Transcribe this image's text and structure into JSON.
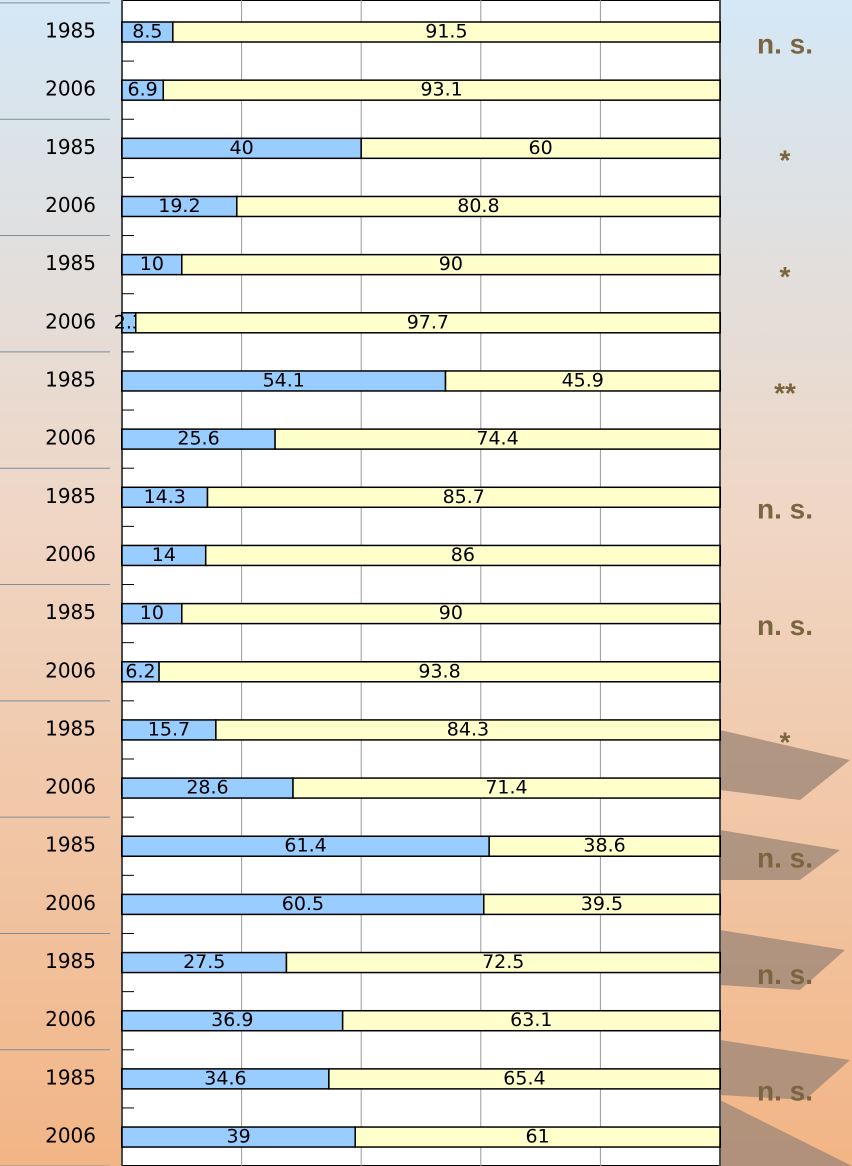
{
  "chart_data": {
    "type": "stacked-bar-horizontal",
    "categories": [
      "1985",
      "2006",
      "1985",
      "2006",
      "1985",
      "2006",
      "1985",
      "2006",
      "1985",
      "2006",
      "1985",
      "2006",
      "1985",
      "2006",
      "1985",
      "2006",
      "1985",
      "2006",
      "1985",
      "2006"
    ],
    "series": [
      {
        "color": "#99ccff",
        "values": [
          8.5,
          6.9,
          40,
          19.2,
          10,
          2.3,
          54.1,
          25.6,
          14.3,
          14,
          10,
          6.2,
          15.7,
          28.6,
          61.4,
          60.5,
          27.5,
          36.9,
          34.6,
          39
        ]
      },
      {
        "color": "#ffffcc",
        "values": [
          91.5,
          93.1,
          60,
          80.8,
          90,
          97.7,
          45.9,
          74.4,
          85.7,
          86,
          90,
          93.8,
          84.3,
          71.4,
          38.6,
          39.5,
          72.5,
          63.1,
          65.4,
          61
        ]
      }
    ],
    "annotations": [
      "n. s.",
      "*",
      "*",
      "**",
      "n. s.",
      "n. s.",
      "*",
      "n. s.",
      "n. s.",
      "n. s."
    ],
    "xlim": [
      0,
      100
    ],
    "xticks": [
      0,
      20,
      40,
      60,
      80,
      100
    ],
    "grid": true
  }
}
